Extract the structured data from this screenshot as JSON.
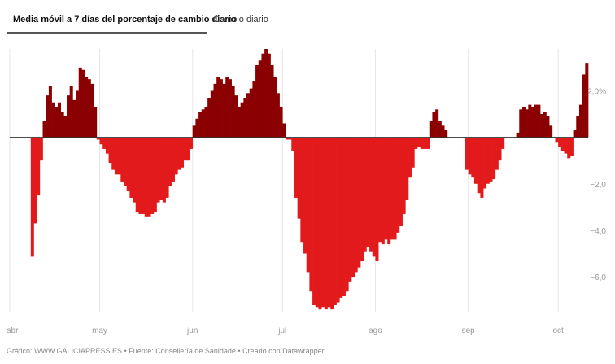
{
  "tabs": {
    "active_label": "Media móvil a 7 días del porcentaje de cambio diario",
    "inactive_label": "Cambio diario"
  },
  "footer": {
    "chart_label": "Gráfico:",
    "chart_source": "WWW.GALICIAPRESS.ES",
    "source_label": "Fuente:",
    "source_value": "Consellería de Sanidade",
    "credit": "Creado con Datawrapper",
    "separator": "•"
  },
  "colors": {
    "positive": "#8b0000",
    "negative": "#e31a1c",
    "grid": "#e6e6e6",
    "axis_text": "#999999"
  },
  "chart_data": {
    "type": "bar",
    "title": "Media móvil a 7 días del porcentaje de cambio diario",
    "xlabel": "",
    "ylabel": "",
    "ylim": [
      -7.5,
      3.8
    ],
    "y_ticks": [
      {
        "value": 2,
        "label": "2,0%"
      },
      {
        "value": -2,
        "label": "−2,0"
      },
      {
        "value": -4,
        "label": "−4,0"
      },
      {
        "value": -6,
        "label": "−6,0"
      }
    ],
    "x_ticks": [
      {
        "day_index": 0,
        "label": "abr"
      },
      {
        "day_index": 30,
        "label": "may"
      },
      {
        "day_index": 61,
        "label": "jun"
      },
      {
        "day_index": 91,
        "label": "jul"
      },
      {
        "day_index": 122,
        "label": "ago"
      },
      {
        "day_index": 153,
        "label": "sep"
      },
      {
        "day_index": 183,
        "label": "oct"
      }
    ],
    "start": "1 abr",
    "values": [
      0,
      0,
      0,
      0,
      0,
      0,
      0,
      -5.1,
      -3.7,
      -2.5,
      -1.0,
      0.7,
      1.8,
      2.2,
      1.5,
      1.3,
      1.5,
      1.1,
      0.9,
      1.8,
      2.2,
      1.6,
      2.0,
      3.0,
      2.9,
      2.6,
      2.5,
      2.3,
      1.3,
      -0.1,
      -0.3,
      -0.5,
      -0.7,
      -1.1,
      -1.4,
      -1.6,
      -1.6,
      -1.9,
      -2.1,
      -2.3,
      -2.6,
      -2.8,
      -3.2,
      -3.3,
      -3.3,
      -3.4,
      -3.4,
      -3.3,
      -3.2,
      -2.8,
      -2.7,
      -2.8,
      -2.6,
      -2.1,
      -1.9,
      -1.6,
      -1.4,
      -1.3,
      -1.0,
      -1.0,
      -0.5,
      0.5,
      0.8,
      1.1,
      1.2,
      1.3,
      1.7,
      2.0,
      2.3,
      2.6,
      2.5,
      2.3,
      2.6,
      2.5,
      2.2,
      1.8,
      1.3,
      1.5,
      1.7,
      1.9,
      2.1,
      2.4,
      3.1,
      3.3,
      3.6,
      3.8,
      3.6,
      3.1,
      2.6,
      1.9,
      1.3,
      0.6,
      -0.1,
      -0.1,
      -0.6,
      -2.6,
      -3.5,
      -4.5,
      -5.0,
      -5.8,
      -6.6,
      -7.2,
      -7.3,
      -7.4,
      -7.3,
      -7.4,
      -7.3,
      -7.4,
      -7.2,
      -7.1,
      -6.9,
      -6.8,
      -6.6,
      -6.2,
      -6.0,
      -5.8,
      -5.6,
      -5.3,
      -4.9,
      -4.7,
      -4.9,
      -5.1,
      -5.3,
      -4.5,
      -4.6,
      -4.4,
      -4.6,
      -4.4,
      -4.4,
      -4.1,
      -3.8,
      -3.3,
      -2.7,
      -1.7,
      -1.3,
      -0.5,
      -0.4,
      -0.5,
      -0.5,
      -0.5,
      0.7,
      1.1,
      1.2,
      0.7,
      0.5,
      0.3,
      0,
      0,
      0,
      0,
      0,
      0,
      -1.4,
      -1.6,
      -1.7,
      -2.0,
      -2.4,
      -2.6,
      -2.2,
      -2.0,
      -1.9,
      -1.8,
      -1.4,
      -1.0,
      -0.5,
      0,
      0,
      0,
      0,
      0.2,
      1.2,
      1.3,
      1.2,
      1.4,
      1.3,
      1.4,
      1.4,
      1.0,
      1.1,
      0.9,
      0.5,
      0,
      -0.2,
      -0.4,
      -0.6,
      -0.7,
      -0.9,
      -0.8,
      0.3,
      0.9,
      1.4,
      2.7,
      3.2
    ]
  }
}
